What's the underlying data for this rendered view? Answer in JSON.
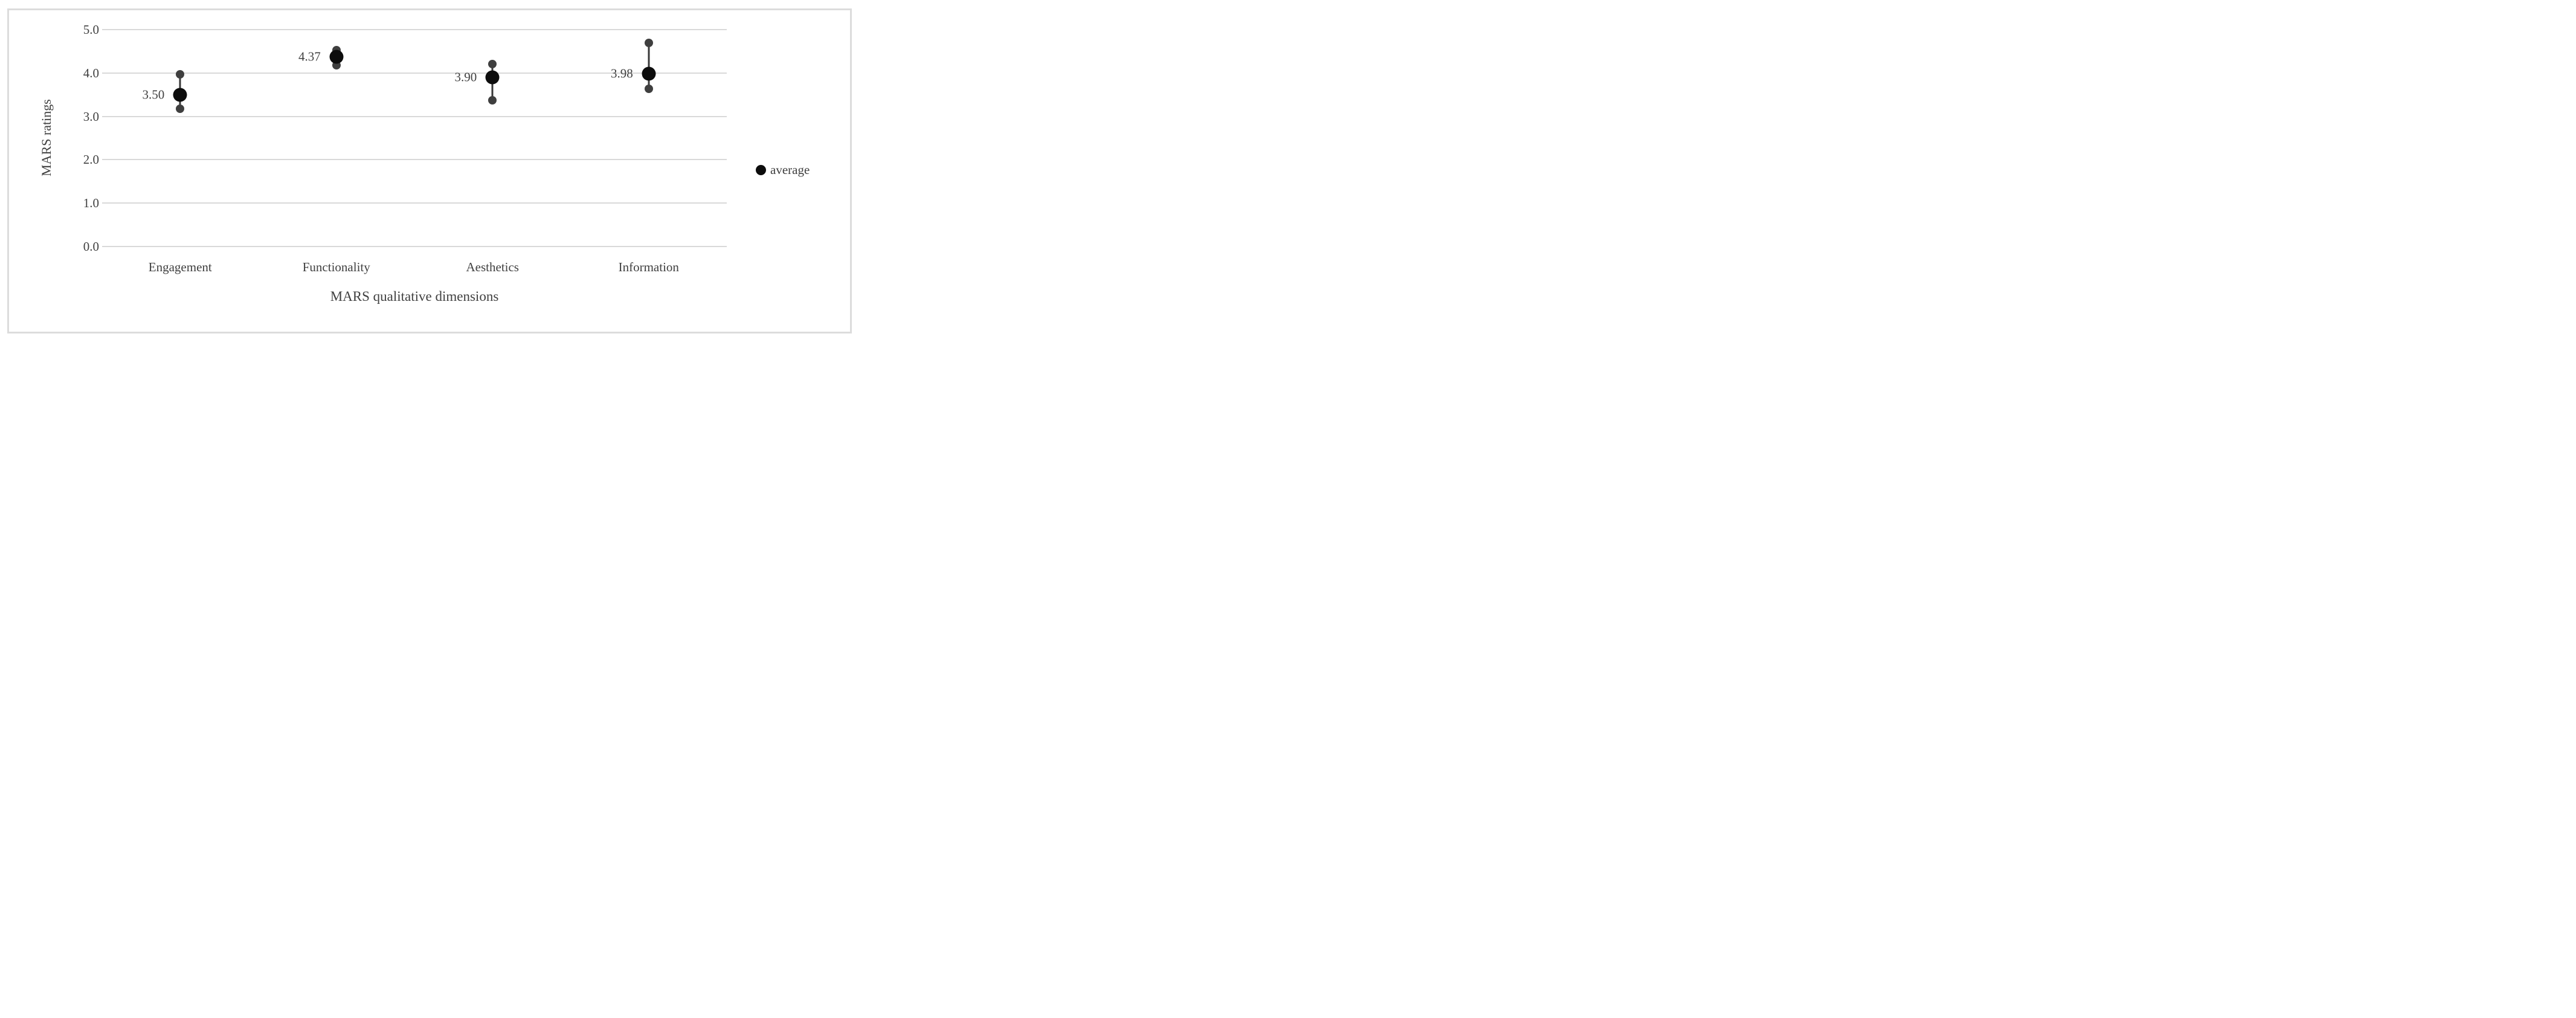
{
  "chart_data": {
    "type": "scatter",
    "title": "",
    "xlabel": "MARS qualitative dimensions",
    "ylabel": "MARS ratings",
    "ylim": [
      0.0,
      5.0
    ],
    "ytick_step": 1.0,
    "yticks": [
      "5.0",
      "4.0",
      "3.0",
      "2.0",
      "1.0",
      "0.0"
    ],
    "grid": true,
    "categories": [
      "Engagement",
      "Functionality",
      "Aesthetics",
      "Information"
    ],
    "points": [
      {
        "category": "Engagement",
        "average": 3.5,
        "average_label": "3.50",
        "high": 3.97,
        "low": 3.17
      },
      {
        "category": "Functionality",
        "average": 4.37,
        "average_label": "4.37",
        "high": 4.52,
        "low": 4.18
      },
      {
        "category": "Aesthetics",
        "average": 3.9,
        "average_label": "3.90",
        "high": 4.2,
        "low": 3.37
      },
      {
        "category": "Information",
        "average": 3.98,
        "average_label": "3.98",
        "high": 4.7,
        "low": 3.63
      }
    ],
    "series": [
      {
        "name": "average",
        "values": [
          3.5,
          4.37,
          3.9,
          3.98
        ]
      },
      {
        "name": "individual-high",
        "values": [
          3.97,
          4.52,
          4.2,
          4.7
        ]
      },
      {
        "name": "individual-low",
        "values": [
          3.17,
          4.18,
          3.37,
          3.63
        ]
      }
    ],
    "legend": {
      "label": "average",
      "position": "right-middle",
      "marker": "filled-circle"
    },
    "colors": {
      "average_dot": "#0d0d0d",
      "rating_dot": "#3f3f3f",
      "whisker": "#383838",
      "gridline": "#d9d9d9",
      "chart_border": "#dcdcdc",
      "text": "#404040",
      "background": "#ffffff"
    }
  }
}
